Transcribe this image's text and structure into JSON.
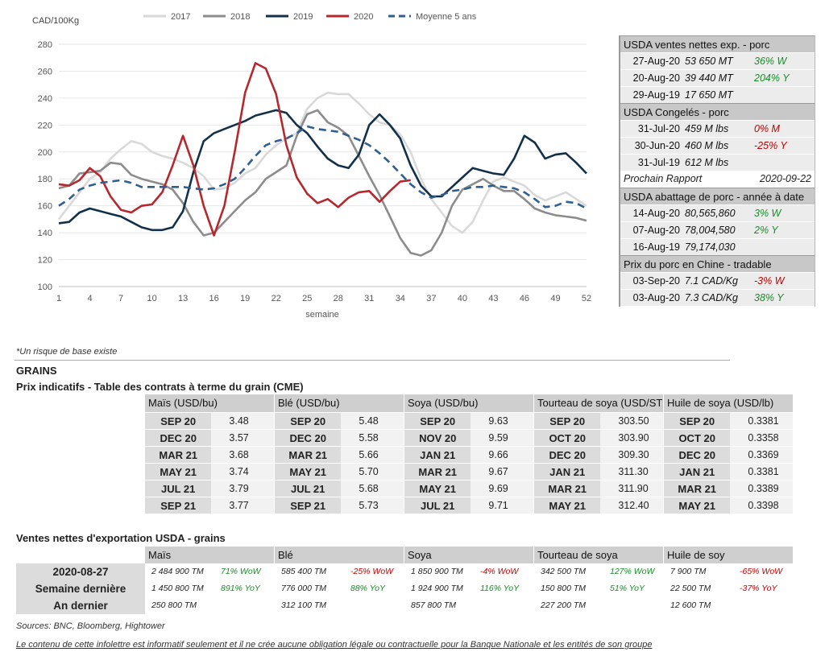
{
  "chart_data": {
    "type": "line",
    "ylabel": "CAD/100Kg",
    "xlabel": "semaine",
    "ylim": [
      100,
      280
    ],
    "xlim": [
      1,
      52
    ],
    "yticks": [
      100,
      120,
      140,
      160,
      180,
      200,
      220,
      240,
      260,
      280
    ],
    "xticks": [
      1,
      4,
      7,
      10,
      13,
      16,
      19,
      22,
      25,
      28,
      31,
      34,
      37,
      40,
      43,
      46,
      49,
      52
    ],
    "grid": true,
    "legend": "top",
    "series": [
      {
        "name": "2017",
        "color": "#d9d9d9",
        "dash": false,
        "x": [
          1,
          2,
          3,
          4,
          5,
          6,
          7,
          8,
          9,
          10,
          11,
          12,
          13,
          14,
          15,
          16,
          17,
          18,
          19,
          20,
          21,
          22,
          23,
          24,
          25,
          26,
          27,
          28,
          29,
          30,
          31,
          32,
          33,
          34,
          35,
          36,
          37,
          38,
          39,
          40,
          41,
          42,
          43,
          44,
          45,
          46,
          47,
          48,
          49,
          50,
          51,
          52
        ],
        "y": [
          150,
          160,
          170,
          180,
          185,
          195,
          202,
          208,
          206,
          200,
          197,
          195,
          192,
          188,
          182,
          172,
          173,
          177,
          184,
          188,
          198,
          205,
          210,
          214,
          232,
          240,
          244,
          243,
          243,
          236,
          228,
          222,
          220,
          213,
          200,
          180,
          165,
          155,
          145,
          140,
          148,
          164,
          178,
          181,
          178,
          175,
          168,
          164,
          167,
          170,
          165,
          160
        ]
      },
      {
        "name": "2018",
        "color": "#8c8c8c",
        "dash": false,
        "x": [
          1,
          2,
          3,
          4,
          5,
          6,
          7,
          8,
          9,
          10,
          11,
          12,
          13,
          14,
          15,
          16,
          17,
          18,
          19,
          20,
          21,
          22,
          23,
          24,
          25,
          26,
          27,
          28,
          29,
          30,
          31,
          32,
          33,
          34,
          35,
          36,
          37,
          38,
          39,
          40,
          41,
          42,
          43,
          44,
          45,
          46,
          47,
          48,
          49,
          50,
          51,
          52
        ],
        "y": [
          173,
          175,
          184,
          185,
          186,
          192,
          191,
          183,
          180,
          178,
          176,
          172,
          162,
          148,
          138,
          140,
          148,
          156,
          164,
          170,
          180,
          185,
          190,
          212,
          228,
          231,
          222,
          218,
          212,
          197,
          182,
          168,
          152,
          136,
          125,
          123,
          127,
          140,
          160,
          172,
          176,
          180,
          175,
          171,
          171,
          165,
          158,
          155,
          153,
          152,
          151,
          149
        ]
      },
      {
        "name": "2019",
        "color": "#13304a",
        "dash": false,
        "x": [
          1,
          2,
          3,
          4,
          5,
          6,
          7,
          8,
          9,
          10,
          11,
          12,
          13,
          14,
          15,
          16,
          17,
          18,
          19,
          20,
          21,
          22,
          23,
          24,
          25,
          26,
          27,
          28,
          29,
          30,
          31,
          32,
          33,
          34,
          35,
          36,
          37,
          38,
          39,
          40,
          41,
          42,
          43,
          44,
          45,
          46,
          47,
          48,
          49,
          50,
          51,
          52
        ],
        "y": [
          147,
          148,
          155,
          158,
          156,
          154,
          152,
          148,
          144,
          142,
          142,
          144,
          156,
          185,
          208,
          214,
          217,
          220,
          223,
          227,
          229,
          231,
          229,
          220,
          214,
          204,
          195,
          190,
          188,
          198,
          220,
          228,
          220,
          210,
          190,
          175,
          167,
          167,
          174,
          181,
          188,
          186,
          184,
          183,
          195,
          212,
          207,
          195,
          198,
          199,
          192,
          184
        ]
      },
      {
        "name": "2020",
        "color": "#b5282e",
        "dash": false,
        "x": [
          1,
          2,
          3,
          4,
          5,
          6,
          7,
          8,
          9,
          10,
          11,
          12,
          13,
          14,
          15,
          16,
          17,
          18,
          19,
          20,
          21,
          22,
          23,
          24,
          25,
          26,
          27,
          28,
          29,
          30,
          31,
          32,
          33,
          34,
          35
        ],
        "y": [
          176,
          175,
          179,
          188,
          182,
          167,
          157,
          155,
          160,
          161,
          170,
          190,
          212,
          190,
          160,
          138,
          160,
          200,
          244,
          266,
          262,
          243,
          205,
          181,
          169,
          162,
          165,
          159,
          166,
          170,
          171,
          163,
          171,
          178,
          179
        ]
      },
      {
        "name": "Moyenne 5 ans",
        "color": "#2f5f8f",
        "dash": true,
        "x": [
          1,
          2,
          3,
          4,
          5,
          6,
          7,
          8,
          9,
          10,
          11,
          12,
          13,
          14,
          15,
          16,
          17,
          18,
          19,
          20,
          21,
          22,
          23,
          24,
          25,
          26,
          27,
          28,
          29,
          30,
          31,
          32,
          33,
          34,
          35,
          36,
          37,
          38,
          39,
          40,
          41,
          42,
          43,
          44,
          45,
          46,
          47,
          48,
          49,
          50,
          51,
          52
        ],
        "y": [
          160,
          165,
          172,
          175,
          177,
          178,
          179,
          177,
          174,
          174,
          174,
          174,
          174,
          173,
          172,
          173,
          176,
          180,
          188,
          197,
          205,
          208,
          210,
          214,
          219,
          217,
          216,
          215,
          212,
          209,
          205,
          199,
          192,
          184,
          176,
          170,
          166,
          168,
          171,
          172,
          174,
          174,
          175,
          174,
          173,
          170,
          165,
          159,
          160,
          163,
          162,
          158
        ]
      }
    ]
  },
  "info_panel": {
    "sections": [
      {
        "title": "USDA ventes nettes exp. - porc",
        "rows": [
          {
            "date": "27-Aug-20",
            "value": "53 650  MT",
            "change": "36% W",
            "dir": "pos"
          },
          {
            "date": "20-Aug-20",
            "value": "39 440  MT",
            "change": "204% Y",
            "dir": "pos"
          },
          {
            "date": "29-Aug-19",
            "value": "17 650  MT",
            "change": "",
            "dir": ""
          }
        ]
      },
      {
        "title": "USDA Congelés - porc",
        "rows": [
          {
            "date": "31-Jul-20",
            "value": "459 M lbs",
            "change": "0% M",
            "dir": "neg"
          },
          {
            "date": "30-Jun-20",
            "value": "460 M lbs",
            "change": "-25% Y",
            "dir": "neg"
          },
          {
            "date": "31-Jul-19",
            "value": "612 M lbs",
            "change": "",
            "dir": ""
          }
        ]
      },
      {
        "plain": true,
        "label": "Prochain Rapport",
        "value": "2020-09-22"
      },
      {
        "title": "USDA abattage de porc - année à date",
        "rows": [
          {
            "date": "14-Aug-20",
            "value": "80,565,860",
            "change": "3% W",
            "dir": "pos"
          },
          {
            "date": "07-Aug-20",
            "value": "78,004,580",
            "change": "2% Y",
            "dir": "pos"
          },
          {
            "date": "16-Aug-19",
            "value": "79,174,030",
            "change": "",
            "dir": ""
          }
        ]
      },
      {
        "title": "Prix du porc en Chine - tradable",
        "rows": [
          {
            "date": "03-Sep-20",
            "value": "7.1 CAD/Kg",
            "change": "-3% W",
            "dir": "neg"
          },
          {
            "date": "03-Aug-20",
            "value": "7.3 CAD/Kg",
            "change": "38% Y",
            "dir": "pos"
          }
        ]
      }
    ]
  },
  "note": "*Un risque de base existe",
  "grains_title": "GRAINS",
  "futures_title": "Prix indicatifs - Table des contrats à terme du grain (CME)",
  "futures": {
    "headers": [
      "Maïs (USD/bu)",
      "Blé (USD/bu)",
      "Soya (USD/bu)",
      "Tourteau de soya (USD/ST",
      "Huile de soya (USD/lb)"
    ],
    "columns": [
      {
        "months": [
          "SEP 20",
          "DEC 20",
          "MAR 21",
          "MAY 21",
          "JUL 21",
          "SEP 21"
        ],
        "prices": [
          "3.48",
          "3.57",
          "3.68",
          "3.74",
          "3.79",
          "3.77"
        ]
      },
      {
        "months": [
          "SEP 20",
          "DEC 20",
          "MAR 21",
          "MAY 21",
          "JUL 21",
          "SEP 21"
        ],
        "prices": [
          "5.48",
          "5.58",
          "5.66",
          "5.70",
          "5.68",
          "5.73"
        ]
      },
      {
        "months": [
          "SEP 20",
          "NOV 20",
          "JAN 21",
          "MAR 21",
          "MAY 21",
          "JUL 21"
        ],
        "prices": [
          "9.63",
          "9.59",
          "9.66",
          "9.67",
          "9.69",
          "9.71"
        ]
      },
      {
        "months": [
          "SEP 20",
          "OCT 20",
          "DEC 20",
          "JAN 21",
          "MAR 21",
          "MAY 21"
        ],
        "prices": [
          "303.50",
          "303.90",
          "309.30",
          "311.30",
          "311.90",
          "312.40"
        ]
      },
      {
        "months": [
          "SEP 20",
          "OCT 20",
          "DEC 20",
          "JAN 21",
          "MAR 21",
          "MAY 21"
        ],
        "prices": [
          "0.3381",
          "0.3358",
          "0.3369",
          "0.3381",
          "0.3389",
          "0.3398"
        ]
      }
    ]
  },
  "exports_title": "Ventes nettes d'exportation USDA - grains",
  "exports": {
    "headers": [
      "Maïs",
      "Blé",
      "Soya",
      "Tourteau de soya",
      "Huile de soy"
    ],
    "rows": [
      {
        "label": "2020-08-27",
        "cells": [
          {
            "v": "2 484 900 TM",
            "c": "71% WoW",
            "dir": "pos"
          },
          {
            "v": "585 400 TM",
            "c": "-25% WoW",
            "dir": "neg"
          },
          {
            "v": "1 850 900 TM",
            "c": "-4% WoW",
            "dir": "neg"
          },
          {
            "v": "342 500 TM",
            "c": "127% WoW",
            "dir": "pos"
          },
          {
            "v": "7 900 TM",
            "c": "-65% WoW",
            "dir": "neg"
          }
        ]
      },
      {
        "label": "Semaine dernière",
        "cells": [
          {
            "v": "1 450 800 TM",
            "c": "891% YoY",
            "dir": "pos"
          },
          {
            "v": "776 000 TM",
            "c": "88% YoY",
            "dir": "pos"
          },
          {
            "v": "1 924 900 TM",
            "c": "116% YoY",
            "dir": "pos"
          },
          {
            "v": "150 800 TM",
            "c": "51% YoY",
            "dir": "pos"
          },
          {
            "v": "22 500 TM",
            "c": "-37% YoY",
            "dir": "neg"
          }
        ]
      },
      {
        "label": "An dernier",
        "cells": [
          {
            "v": "250 800 TM",
            "c": "",
            "dir": ""
          },
          {
            "v": "312 100 TM",
            "c": "",
            "dir": ""
          },
          {
            "v": "857 800 TM",
            "c": "",
            "dir": ""
          },
          {
            "v": "227 200 TM",
            "c": "",
            "dir": ""
          },
          {
            "v": "12 600 TM",
            "c": "",
            "dir": ""
          }
        ]
      }
    ]
  },
  "sources": "Sources: BNC, Bloomberg, Hightower",
  "disclaimer": "Le contenu de cette infolettre est informatif seulement et il ne crée aucune obligation légale ou contractuelle pour la Banque Nationale et les entités de son groupe"
}
